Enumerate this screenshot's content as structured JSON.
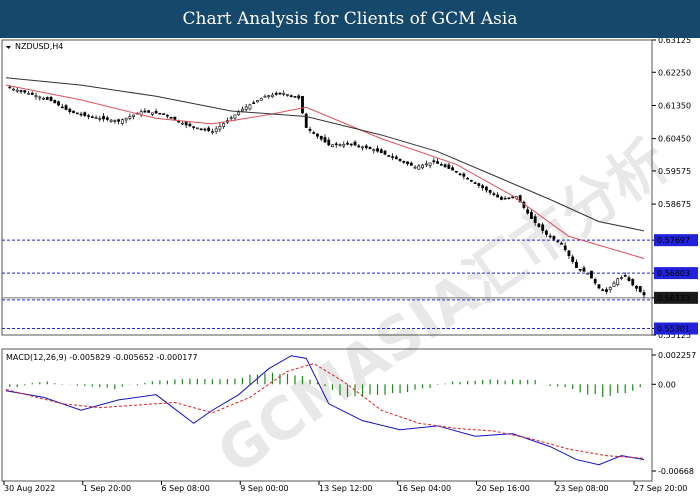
{
  "header": {
    "title": "Chart Analysis for Clients of GCM Asia"
  },
  "watermark": {
    "text": "GCMASIA汇市分析"
  },
  "colors": {
    "header_bg": "#16486b",
    "bull_candle": "#ffffff",
    "bear_candle": "#000000",
    "ma_fast": "#e0505a",
    "ma_slow": "#333333",
    "level_line": "#2222dd",
    "current_price_bg": "#1a1a1a",
    "macd_hist": "#1a8a1a",
    "macd_main": "#1010cc",
    "macd_signal": "#dd2222"
  },
  "chart_data": [
    {
      "type": "candlestick",
      "instrument": "NZDUSD,H4",
      "ylim": [
        0.55125,
        0.63125
      ],
      "y_ticks": [
        "0.63125",
        "0.62250",
        "0.61350",
        "0.60450",
        "0.59575",
        "0.58675",
        "0.57697",
        "0.56803",
        "0.56133",
        "0.55301",
        "0.55125"
      ],
      "support_resistance_levels": [
        {
          "value": 0.57697,
          "label": "0.57697"
        },
        {
          "value": 0.56803,
          "label": "0.56803"
        },
        {
          "value": 0.56133,
          "label": "0.56133"
        },
        {
          "value": 0.55301,
          "label": "0.55301"
        }
      ],
      "current_price": 0.56133,
      "x_tick_labels": [
        "30 Aug 2022",
        "1 Sep 20:00",
        "6 Sep 08:00",
        "9 Sep 00:00",
        "13 Sep 12:00",
        "16 Sep 04:00",
        "20 Sep 16:00",
        "23 Sep 08:00",
        "27 Sep 20:00"
      ],
      "close_path": [
        [
          0,
          0.6185
        ],
        [
          6,
          0.6168
        ],
        [
          12,
          0.6148
        ],
        [
          17,
          0.6118
        ],
        [
          22,
          0.6105
        ],
        [
          30,
          0.6092
        ],
        [
          36,
          0.6118
        ],
        [
          42,
          0.6112
        ],
        [
          48,
          0.6082
        ],
        [
          55,
          0.6064
        ],
        [
          58,
          0.6086
        ],
        [
          63,
          0.6125
        ],
        [
          69,
          0.616
        ],
        [
          74,
          0.6168
        ],
        [
          78,
          0.6155
        ],
        [
          80,
          0.6075
        ],
        [
          86,
          0.6028
        ],
        [
          92,
          0.603
        ],
        [
          98,
          0.6015
        ],
        [
          104,
          0.599
        ],
        [
          109,
          0.5968
        ],
        [
          114,
          0.5982
        ],
        [
          120,
          0.5955
        ],
        [
          126,
          0.5918
        ],
        [
          132,
          0.588
        ],
        [
          136,
          0.5888
        ],
        [
          140,
          0.5828
        ],
        [
          144,
          0.5785
        ],
        [
          148,
          0.576
        ],
        [
          152,
          0.5695
        ],
        [
          155,
          0.568
        ],
        [
          158,
          0.564
        ],
        [
          160,
          0.563
        ],
        [
          163,
          0.5665
        ],
        [
          165,
          0.5672
        ],
        [
          167,
          0.5648
        ],
        [
          170,
          0.5621
        ]
      ],
      "moving_averages": [
        {
          "color": "#e0505a",
          "path": [
            [
              0,
              0.619
            ],
            [
              20,
              0.615
            ],
            [
              40,
              0.61
            ],
            [
              55,
              0.6085
            ],
            [
              70,
              0.611
            ],
            [
              80,
              0.613
            ],
            [
              100,
              0.6045
            ],
            [
              120,
              0.5975
            ],
            [
              135,
              0.589
            ],
            [
              150,
              0.578
            ],
            [
              170,
              0.572
            ]
          ]
        },
        {
          "color": "#333333",
          "path": [
            [
              0,
              0.621
            ],
            [
              20,
              0.619
            ],
            [
              40,
              0.616
            ],
            [
              60,
              0.612
            ],
            [
              80,
              0.6105
            ],
            [
              100,
              0.6055
            ],
            [
              115,
              0.601
            ],
            [
              130,
              0.5945
            ],
            [
              145,
              0.588
            ],
            [
              158,
              0.582
            ],
            [
              170,
              0.5795
            ]
          ]
        }
      ]
    },
    {
      "type": "macd",
      "label": "MACD(12,26,9) -0.005829 -0.005652 -0.000177",
      "ylim": [
        -0.00668,
        0.002257
      ],
      "y_ticks": [
        "0.002257",
        "0.00",
        "-0.00668"
      ],
      "main": [
        [
          0,
          -0.0005
        ],
        [
          10,
          -0.001
        ],
        [
          20,
          -0.002
        ],
        [
          30,
          -0.0012
        ],
        [
          40,
          -0.0008
        ],
        [
          50,
          -0.003
        ],
        [
          55,
          -0.002
        ],
        [
          62,
          -0.0008
        ],
        [
          70,
          0.0012
        ],
        [
          76,
          0.0022
        ],
        [
          80,
          0.002
        ],
        [
          86,
          -0.0015
        ],
        [
          95,
          -0.0028
        ],
        [
          105,
          -0.0035
        ],
        [
          115,
          -0.0032
        ],
        [
          125,
          -0.004
        ],
        [
          135,
          -0.0038
        ],
        [
          145,
          -0.0048
        ],
        [
          152,
          -0.0058
        ],
        [
          158,
          -0.0062
        ],
        [
          164,
          -0.0055
        ],
        [
          170,
          -0.0058
        ]
      ],
      "signal": [
        [
          0,
          -0.0004
        ],
        [
          15,
          -0.0015
        ],
        [
          25,
          -0.0018
        ],
        [
          35,
          -0.0016
        ],
        [
          45,
          -0.0014
        ],
        [
          55,
          -0.0022
        ],
        [
          65,
          -0.001
        ],
        [
          75,
          0.001
        ],
        [
          82,
          0.0016
        ],
        [
          90,
          0.0002
        ],
        [
          100,
          -0.002
        ],
        [
          110,
          -0.003
        ],
        [
          120,
          -0.0034
        ],
        [
          130,
          -0.0036
        ],
        [
          140,
          -0.0042
        ],
        [
          150,
          -0.005
        ],
        [
          160,
          -0.0055
        ],
        [
          170,
          -0.0057
        ]
      ],
      "histogram": [
        [
          0,
          -0.0003
        ],
        [
          10,
          0.0002
        ],
        [
          20,
          -0.0002
        ],
        [
          30,
          -0.0003
        ],
        [
          40,
          0.0003
        ],
        [
          50,
          0.0005
        ],
        [
          60,
          0.0004
        ],
        [
          70,
          0.001
        ],
        [
          80,
          0.0006
        ],
        [
          90,
          -0.001
        ],
        [
          100,
          -0.0008
        ],
        [
          110,
          -0.0004
        ],
        [
          120,
          0.0002
        ],
        [
          130,
          0.0003
        ],
        [
          140,
          0.0003
        ],
        [
          150,
          -0.0004
        ],
        [
          160,
          -0.001
        ],
        [
          170,
          -0.0002
        ]
      ]
    }
  ]
}
